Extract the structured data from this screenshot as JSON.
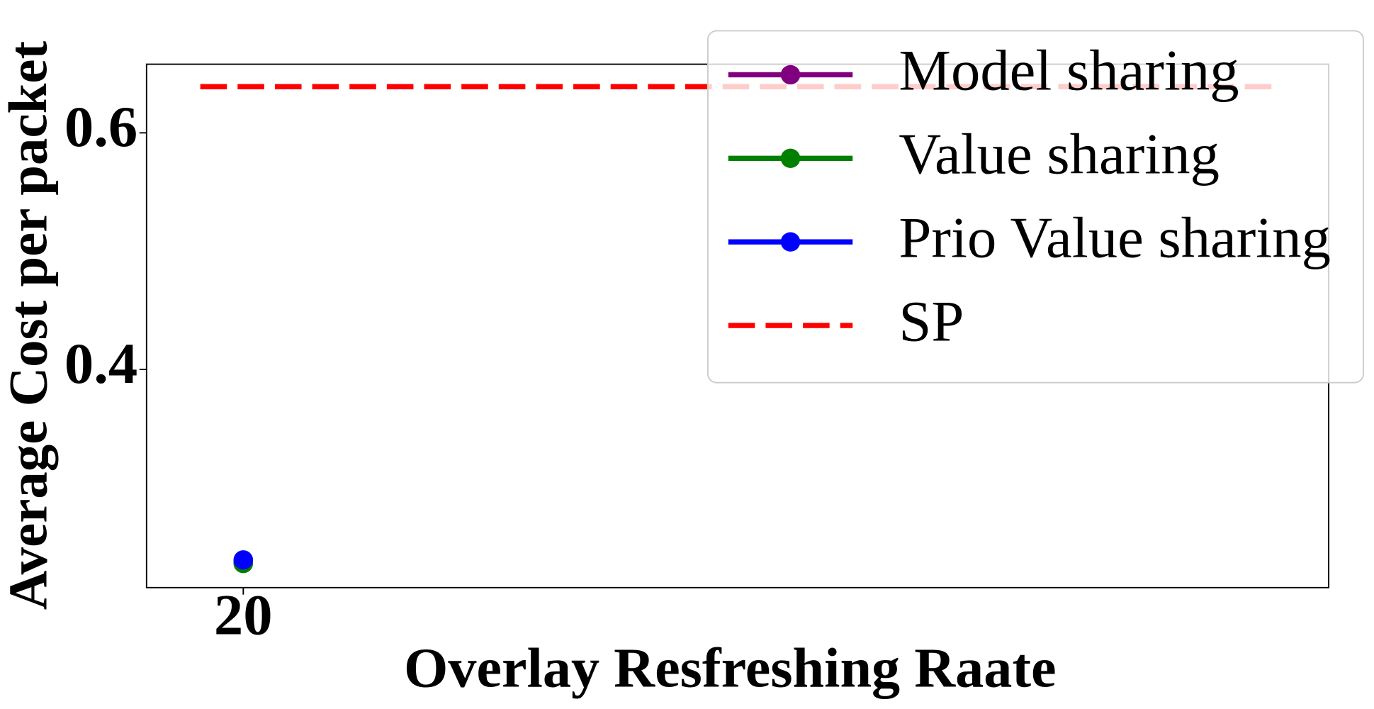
{
  "chart_data": {
    "type": "line",
    "xlabel": "Overlay Resfreshing Raate",
    "ylabel": "Average Cost per packet",
    "xlim": [
      -2.5,
      272.5
    ],
    "xticks": [
      20
    ],
    "ylim": [
      0.2156,
      0.658
    ],
    "yticks": [
      0.4,
      0.6
    ],
    "legend": "upper right",
    "series": [
      {
        "name": "Model sharing",
        "color": "#800080",
        "x": [
          20
        ],
        "values": [
          0.237
        ],
        "marker": true,
        "dashed": false
      },
      {
        "name": "Value sharing",
        "color": "#008000",
        "x": [
          20
        ],
        "values": [
          0.236
        ],
        "marker": true,
        "dashed": false
      },
      {
        "name": "Prio Value sharing",
        "color": "#0000ff",
        "x": [
          20
        ],
        "values": [
          0.239
        ],
        "marker": true,
        "dashed": false
      },
      {
        "name": "SP",
        "color": "#ff0000",
        "x": [
          10,
          260
        ],
        "values": [
          0.639,
          0.639
        ],
        "marker": false,
        "dashed": true
      }
    ]
  }
}
